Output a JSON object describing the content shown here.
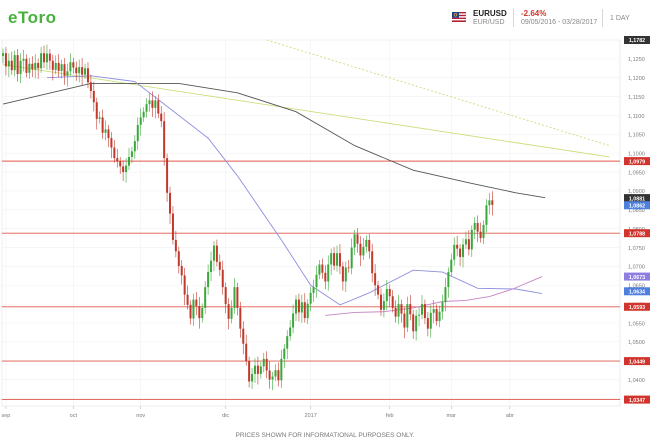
{
  "header": {
    "logo": "eToro",
    "symbol": "EURUSD",
    "pair": "EUR/USD",
    "change": "-2.64%",
    "date_range": "09/05/2016 - 03/28/2017",
    "timeframe": "1 DAY"
  },
  "footer": {
    "disclaimer": "PRICES SHOWN FOR INFORMATIONAL PURPOSES ONLY."
  },
  "colors": {
    "up": "#3aa83a",
    "down": "#c0392b",
    "hline": "#e0584b",
    "ma_long": "#555555",
    "ma_mid": "#8d8fe0",
    "ma_short": "#c784c4",
    "trend_solid": "#c9df7a",
    "trend_dotted": "#c9df7a"
  },
  "chart_data": {
    "type": "candlestick",
    "x_ticks": [
      "sep",
      "oct",
      "nov",
      "dic",
      "2017",
      "feb",
      "mar",
      "abr"
    ],
    "y_ticks": [
      "1,1300",
      "1,1250",
      "1,1200",
      "1,1150",
      "1,1100",
      "1,1050",
      "1,1000",
      "1,0950",
      "1,0900",
      "1,0850",
      "1,0800",
      "1,0750",
      "1,0700",
      "1,0650",
      "1,0600",
      "1,0550",
      "1,0500",
      "1,0450",
      "1,0400",
      "1,0350"
    ],
    "ylim": [
      1.033,
      1.13
    ],
    "price_labels": [
      {
        "label": "1,1782",
        "value": 1.13,
        "style": "dark"
      },
      {
        "label": "1,0979",
        "value": 1.0979,
        "style": "red"
      },
      {
        "label": "1,0881",
        "value": 1.0881,
        "style": "dark"
      },
      {
        "label": "1,0862",
        "value": 1.0862,
        "style": "blue"
      },
      {
        "label": "1,0788",
        "value": 1.0788,
        "style": "red"
      },
      {
        "label": "1,0673",
        "value": 1.0673,
        "style": "purple"
      },
      {
        "label": "1,0634",
        "value": 1.0634,
        "style": "blue"
      },
      {
        "label": "1,0593",
        "value": 1.0593,
        "style": "red"
      },
      {
        "label": "1,0449",
        "value": 1.0449,
        "style": "red"
      },
      {
        "label": "1,0347",
        "value": 1.0347,
        "style": "red"
      }
    ],
    "horizontal_levels": [
      1.0979,
      1.0788,
      1.0593,
      1.0449,
      1.0347
    ],
    "trendlines": [
      {
        "style": "solid",
        "from": [
          0,
          1.1235
        ],
        "to": [
          207,
          1.099
        ]
      },
      {
        "style": "dotted",
        "from": [
          90,
          1.13
        ],
        "to": [
          207,
          1.102
        ]
      }
    ],
    "ma_long": [
      [
        0,
        1.113
      ],
      [
        30,
        1.1185
      ],
      [
        60,
        1.1185
      ],
      [
        80,
        1.116
      ],
      [
        100,
        1.111
      ],
      [
        120,
        1.102
      ],
      [
        140,
        1.0955
      ],
      [
        160,
        1.092
      ],
      [
        175,
        1.0895
      ],
      [
        185,
        1.0882
      ]
    ],
    "ma_mid": [
      [
        15,
        1.12
      ],
      [
        30,
        1.1205
      ],
      [
        45,
        1.119
      ],
      [
        55,
        1.113
      ],
      [
        70,
        1.104
      ],
      [
        80,
        1.094
      ],
      [
        95,
        1.077
      ],
      [
        105,
        1.065
      ],
      [
        115,
        1.0598
      ],
      [
        125,
        1.063
      ],
      [
        140,
        1.069
      ],
      [
        150,
        1.0685
      ],
      [
        162,
        1.0642
      ],
      [
        175,
        1.064
      ],
      [
        184,
        1.0628
      ]
    ],
    "ma_short": [
      [
        110,
        1.057
      ],
      [
        120,
        1.0578
      ],
      [
        130,
        1.058
      ],
      [
        140,
        1.059
      ],
      [
        150,
        1.0607
      ],
      [
        158,
        1.061
      ],
      [
        166,
        1.062
      ],
      [
        174,
        1.064
      ],
      [
        184,
        1.0673
      ]
    ],
    "candles": [
      [
        1.1258,
        1.1265
      ],
      [
        1.1265,
        1.123
      ],
      [
        1.123,
        1.1245
      ],
      [
        1.1245,
        1.122
      ],
      [
        1.122,
        1.126
      ],
      [
        1.126,
        1.121
      ],
      [
        1.121,
        1.1245
      ],
      [
        1.1245,
        1.125
      ],
      [
        1.125,
        1.1213
      ],
      [
        1.1213,
        1.1237
      ],
      [
        1.1237,
        1.1222
      ],
      [
        1.1222,
        1.1239
      ],
      [
        1.1239,
        1.1225
      ],
      [
        1.1225,
        1.1265
      ],
      [
        1.1265,
        1.1241
      ],
      [
        1.1241,
        1.1264
      ],
      [
        1.1264,
        1.1245
      ],
      [
        1.1245,
        1.1221
      ],
      [
        1.1221,
        1.1239
      ],
      [
        1.1239,
        1.1218
      ],
      [
        1.1218,
        1.1236
      ],
      [
        1.1236,
        1.1205
      ],
      [
        1.1205,
        1.1217
      ],
      [
        1.1217,
        1.1241
      ],
      [
        1.1241,
        1.1227
      ],
      [
        1.1227,
        1.1212
      ],
      [
        1.1212,
        1.1228
      ],
      [
        1.1228,
        1.1208
      ],
      [
        1.1208,
        1.1225
      ],
      [
        1.1225,
        1.1188
      ],
      [
        1.1188,
        1.1165
      ],
      [
        1.1165,
        1.1135
      ],
      [
        1.1135,
        1.1091
      ],
      [
        1.1091,
        1.1095
      ],
      [
        1.1095,
        1.1054
      ],
      [
        1.1054,
        1.1063
      ],
      [
        1.1063,
        1.104
      ],
      [
        1.104,
        1.1015
      ],
      [
        1.1015,
        1.0987
      ],
      [
        1.0987,
        1.0978
      ],
      [
        1.0978,
        1.0965
      ],
      [
        1.0965,
        1.095
      ],
      [
        1.095,
        1.0967
      ],
      [
        1.0967,
        1.099
      ],
      [
        1.099,
        1.1005
      ],
      [
        1.1005,
        1.1032
      ],
      [
        1.1032,
        1.1075
      ],
      [
        1.1075,
        1.1095
      ],
      [
        1.1095,
        1.111
      ],
      [
        1.111,
        1.113
      ],
      [
        1.113,
        1.114
      ],
      [
        1.114,
        1.112
      ],
      [
        1.112,
        1.114
      ],
      [
        1.114,
        1.1105
      ],
      [
        1.1105,
        1.1085
      ],
      [
        1.1085,
        1.0987
      ],
      [
        1.0987,
        1.0895
      ],
      [
        1.0895,
        1.084
      ],
      [
        1.084,
        1.077
      ],
      [
        1.077,
        1.074
      ],
      [
        1.074,
        1.0701
      ],
      [
        1.0701,
        1.0676
      ],
      [
        1.0676,
        1.0625
      ],
      [
        1.0625,
        1.0598
      ],
      [
        1.0598,
        1.0562
      ],
      [
        1.0562,
        1.0612
      ],
      [
        1.0612,
        1.0595
      ],
      [
        1.0595,
        1.0563
      ],
      [
        1.0563,
        1.059
      ],
      [
        1.059,
        1.0645
      ],
      [
        1.0645,
        1.0685
      ],
      [
        1.0685,
        1.0715
      ],
      [
        1.0715,
        1.0755
      ],
      [
        1.0755,
        1.0712
      ],
      [
        1.0712,
        1.0691
      ],
      [
        1.0691,
        1.0645
      ],
      [
        1.0645,
        1.06
      ],
      [
        1.06,
        1.0561
      ],
      [
        1.0561,
        1.059
      ],
      [
        1.059,
        1.0645
      ],
      [
        1.0645,
        1.059
      ],
      [
        1.059,
        1.0535
      ],
      [
        1.0535,
        1.0495
      ],
      [
        1.0495,
        1.0449
      ],
      [
        1.0449,
        1.0395
      ],
      [
        1.0395,
        1.0415
      ],
      [
        1.0415,
        1.0437
      ],
      [
        1.0437,
        1.0415
      ],
      [
        1.0415,
        1.0435
      ],
      [
        1.0435,
        1.0455
      ],
      [
        1.0455,
        1.0424
      ],
      [
        1.0424,
        1.04
      ],
      [
        1.04,
        1.0408
      ],
      [
        1.0408,
        1.0425
      ],
      [
        1.0425,
        1.0398
      ],
      [
        1.0398,
        1.0455
      ],
      [
        1.0455,
        1.0482
      ],
      [
        1.0482,
        1.0515
      ],
      [
        1.0515,
        1.0538
      ],
      [
        1.0538,
        1.0575
      ],
      [
        1.0575,
        1.0612
      ],
      [
        1.0612,
        1.0578
      ],
      [
        1.0578,
        1.0605
      ],
      [
        1.0605,
        1.0563
      ],
      [
        1.0563,
        1.0601
      ],
      [
        1.0601,
        1.063
      ],
      [
        1.063,
        1.0645
      ],
      [
        1.0645,
        1.0678
      ],
      [
        1.0678,
        1.0705
      ],
      [
        1.0705,
        1.0683
      ],
      [
        1.0683,
        1.066
      ],
      [
        1.066,
        1.0705
      ],
      [
        1.0705,
        1.0735
      ],
      [
        1.0735,
        1.0702
      ],
      [
        1.0702,
        1.0735
      ],
      [
        1.0735,
        1.07
      ],
      [
        1.07,
        1.066
      ],
      [
        1.066,
        1.0697
      ],
      [
        1.0697,
        1.0695
      ],
      [
        1.0695,
        1.075
      ],
      [
        1.075,
        1.0785
      ],
      [
        1.0785,
        1.076
      ],
      [
        1.076,
        1.0729
      ],
      [
        1.0729,
        1.0752
      ],
      [
        1.0752,
        1.077
      ],
      [
        1.077,
        1.074
      ],
      [
        1.074,
        1.0682
      ],
      [
        1.0682,
        1.065
      ],
      [
        1.065,
        1.0625
      ],
      [
        1.0625,
        1.0585
      ],
      [
        1.0585,
        1.0608
      ],
      [
        1.0608,
        1.064
      ],
      [
        1.064,
        1.0621
      ],
      [
        1.0621,
        1.059
      ],
      [
        1.059,
        1.0567
      ],
      [
        1.0567,
        1.06
      ],
      [
        1.06,
        1.0575
      ],
      [
        1.0575,
        1.0538
      ],
      [
        1.0538,
        1.06
      ],
      [
        1.06,
        1.0573
      ],
      [
        1.0573,
        1.0528
      ],
      [
        1.0528,
        1.0569
      ],
      [
        1.0569,
        1.0572
      ],
      [
        1.0572,
        1.06
      ],
      [
        1.06,
        1.0563
      ],
      [
        1.0563,
        1.0535
      ],
      [
        1.0535,
        1.0577
      ],
      [
        1.0577,
        1.0587
      ],
      [
        1.0587,
        1.0555
      ],
      [
        1.0555,
        1.058
      ],
      [
        1.058,
        1.0605
      ],
      [
        1.0605,
        1.0645
      ],
      [
        1.0645,
        1.0685
      ],
      [
        1.0685,
        1.0718
      ],
      [
        1.0718,
        1.0757
      ],
      [
        1.0757,
        1.0747
      ],
      [
        1.0747,
        1.0725
      ],
      [
        1.0725,
        1.0758
      ],
      [
        1.0758,
        1.0772
      ],
      [
        1.0772,
        1.0745
      ],
      [
        1.0745,
        1.0797
      ],
      [
        1.0797,
        1.0815
      ],
      [
        1.0815,
        1.0792
      ],
      [
        1.0792,
        1.0775
      ],
      [
        1.0775,
        1.081
      ],
      [
        1.081,
        1.0862
      ],
      [
        1.0862,
        1.0875
      ],
      [
        1.0875,
        1.0863
      ]
    ]
  }
}
